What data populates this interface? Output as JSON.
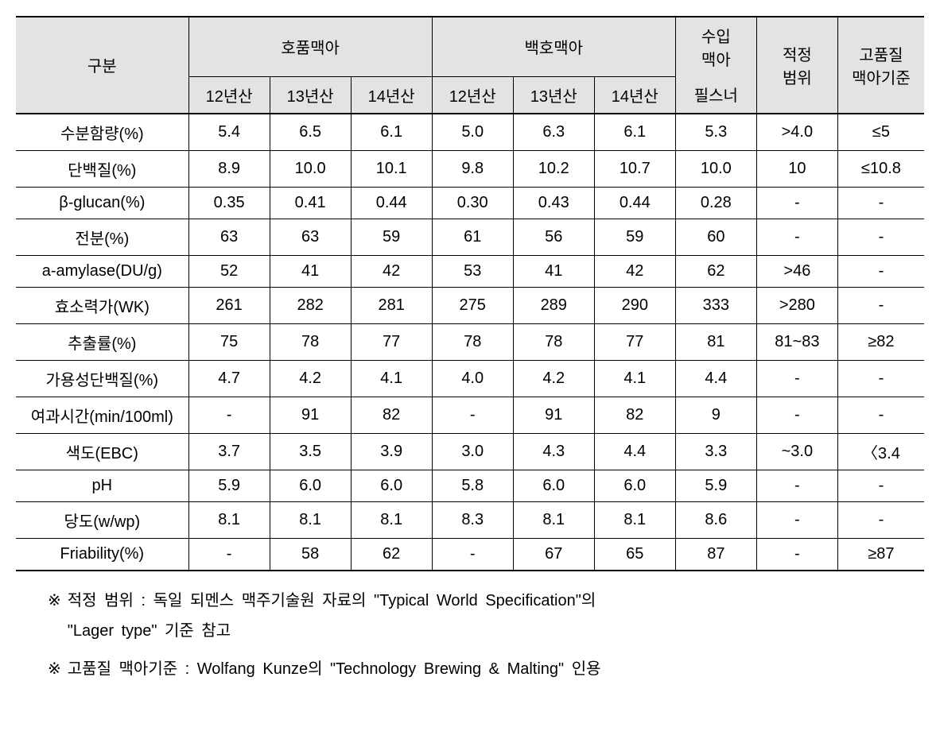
{
  "table": {
    "header": {
      "category": "구분",
      "group1": "호품맥아",
      "group2": "백호맥아",
      "group3_top": "수입",
      "group3_bottom": "맥아",
      "range_top": "적정",
      "range_bottom": "범위",
      "quality_top": "고품질",
      "quality_bottom": "맥아기준",
      "sub": [
        "12년산",
        "13년산",
        "14년산",
        "12년산",
        "13년산",
        "14년산",
        "필스너"
      ]
    },
    "rows": [
      {
        "label": "수분함량(%)",
        "v": [
          "5.4",
          "6.5",
          "6.1",
          "5.0",
          "6.3",
          "6.1",
          "5.3",
          ">4.0",
          "≤5"
        ]
      },
      {
        "label": "단백질(%)",
        "v": [
          "8.9",
          "10.0",
          "10.1",
          "9.8",
          "10.2",
          "10.7",
          "10.0",
          "10",
          "≤10.8"
        ]
      },
      {
        "label": "β-glucan(%)",
        "v": [
          "0.35",
          "0.41",
          "0.44",
          "0.30",
          "0.43",
          "0.44",
          "0.28",
          "-",
          "-"
        ]
      },
      {
        "label": "전분(%)",
        "v": [
          "63",
          "63",
          "59",
          "61",
          "56",
          "59",
          "60",
          "-",
          "-"
        ]
      },
      {
        "label": "a-amylase(DU/g)",
        "v": [
          "52",
          "41",
          "42",
          "53",
          "41",
          "42",
          "62",
          ">46",
          "-"
        ]
      },
      {
        "label": "효소력가(WK)",
        "v": [
          "261",
          "282",
          "281",
          "275",
          "289",
          "290",
          "333",
          ">280",
          "-"
        ]
      },
      {
        "label": "추출률(%)",
        "v": [
          "75",
          "78",
          "77",
          "78",
          "78",
          "77",
          "81",
          "81~83",
          "≥82"
        ]
      },
      {
        "label": "가용성단백질(%)",
        "v": [
          "4.7",
          "4.2",
          "4.1",
          "4.0",
          "4.2",
          "4.1",
          "4.4",
          "-",
          "-"
        ]
      },
      {
        "label": "여과시간(min/100ml)",
        "v": [
          "-",
          "91",
          "82",
          "-",
          "91",
          "82",
          "9",
          "-",
          "-"
        ]
      },
      {
        "label": "색도(EBC)",
        "v": [
          "3.7",
          "3.5",
          "3.9",
          "3.0",
          "4.3",
          "4.4",
          "3.3",
          "~3.0",
          "〈3.4"
        ]
      },
      {
        "label": "pH",
        "v": [
          "5.9",
          "6.0",
          "6.0",
          "5.8",
          "6.0",
          "6.0",
          "5.9",
          "-",
          "-"
        ]
      },
      {
        "label": "당도(w/wp)",
        "v": [
          "8.1",
          "8.1",
          "8.1",
          "8.3",
          "8.1",
          "8.1",
          "8.6",
          "-",
          "-"
        ]
      },
      {
        "label": "Friability(%)",
        "v": [
          "-",
          "58",
          "62",
          "-",
          "67",
          "65",
          "87",
          "-",
          "≥87"
        ]
      }
    ]
  },
  "footnotes": {
    "marker": "※",
    "note1_line1": "적정 범위 : 독일 되멘스 맥주기술원 자료의 \"Typical World Specification\"의",
    "note1_line2": "\"Lager type\" 기준 참고",
    "note2": "고품질 맥아기준 : Wolfang Kunze의 \"Technology Brewing & Malting\" 인용"
  },
  "style": {
    "header_bg": "#e3e3e3",
    "border_color": "#000000",
    "font_family": "Malgun Gothic",
    "base_fontsize": 20
  }
}
